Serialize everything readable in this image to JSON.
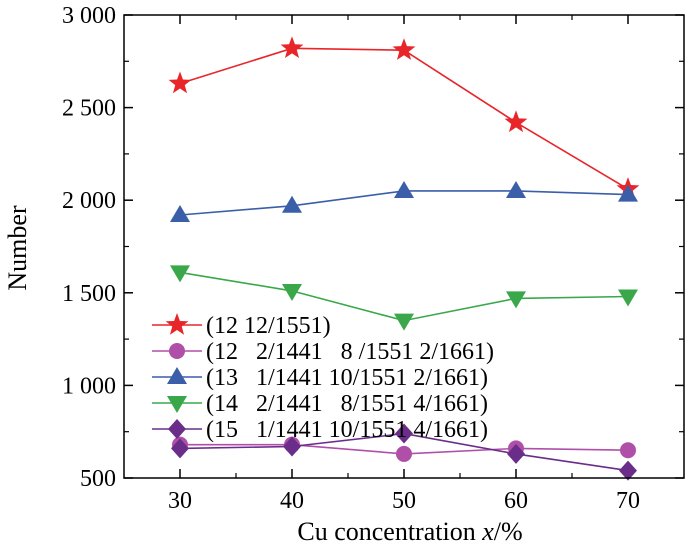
{
  "chart_data": {
    "type": "line",
    "xlabel_prefix": "Cu concentration ",
    "xlabel_var": "x",
    "xlabel_suffix": "/%",
    "ylabel": "Number",
    "x": [
      30,
      40,
      50,
      60,
      70
    ],
    "xlim": [
      25,
      75
    ],
    "ylim": [
      500,
      3000
    ],
    "xticks": [
      30,
      40,
      50,
      60,
      70
    ],
    "yticks": [
      500,
      1000,
      1500,
      2000,
      2500,
      3000
    ],
    "ytick_labels": [
      "500",
      "1 000",
      "1 500",
      "2 000",
      "2 500",
      "3 000"
    ],
    "grid": false,
    "legend_position": "bottom-left",
    "series": [
      {
        "name": "(12 12/1551)",
        "marker": "star",
        "color": "#e8262a",
        "values": [
          2630,
          2820,
          2810,
          2420,
          2060
        ]
      },
      {
        "name": "(12   2/1441   8 /1551 2/1661)",
        "marker": "circle",
        "color": "#b04fa8",
        "values": [
          680,
          680,
          630,
          660,
          650
        ]
      },
      {
        "name": "(13   1/1441 10/1551 2/1661)",
        "marker": "triangle-up",
        "color": "#3a5ea8",
        "values": [
          1920,
          1970,
          2050,
          2050,
          2030
        ]
      },
      {
        "name": "(14   2/1441   8/1551 4/1661)",
        "marker": "triangle-down",
        "color": "#3aa84a",
        "values": [
          1610,
          1510,
          1350,
          1470,
          1480
        ]
      },
      {
        "name": "(15   1/1441 10/1551 4/1661)",
        "marker": "diamond",
        "color": "#6a2e8a",
        "values": [
          660,
          670,
          740,
          630,
          540
        ]
      }
    ]
  }
}
